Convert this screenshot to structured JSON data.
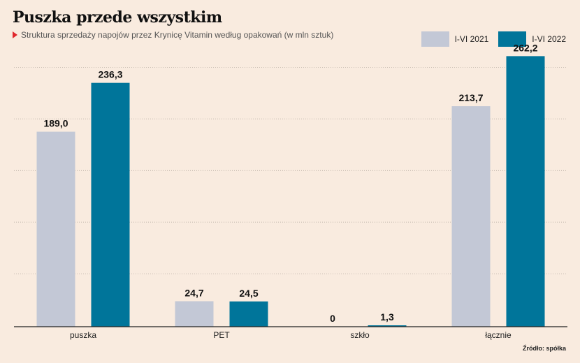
{
  "header": {
    "title": "Puszka przede wszystkim",
    "subtitle": "Struktura sprzedaży napojów przez Krynicę Vitamin według opakowań (w mln sztuk)"
  },
  "source": "Źródło: spółka",
  "colors": {
    "background": "#f9ebdf",
    "series_2021": "#c3c8d6",
    "series_2022": "#00759a",
    "accent_triangle": "#e0272d"
  },
  "chart_data": {
    "type": "bar",
    "categories": [
      "puszka",
      "PET",
      "szkło",
      "łącznie"
    ],
    "series": [
      {
        "name": "I-VI 2021",
        "values": [
          189.0,
          24.7,
          0,
          213.7
        ],
        "labels": [
          "189,0",
          "24,7",
          "0",
          "213,7"
        ]
      },
      {
        "name": "I-VI 2022",
        "values": [
          236.3,
          24.5,
          1.3,
          262.2
        ],
        "labels": [
          "236,3",
          "24,5",
          "1,3",
          "262,2"
        ]
      }
    ],
    "ylim": [
      0,
      270
    ],
    "grid": true,
    "legend_position": "top-right"
  }
}
